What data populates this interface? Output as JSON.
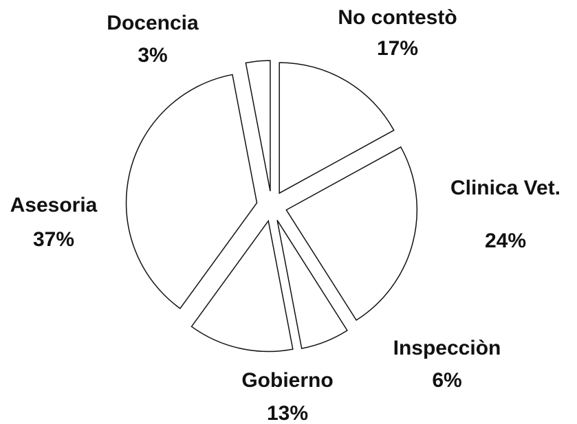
{
  "chart_data": {
    "type": "pie",
    "categories": [
      "No contestò",
      "Clinica Vet.",
      "Inspecciòn",
      "Gobierno",
      "Asesoria",
      "Docencia"
    ],
    "values": [
      17,
      24,
      6,
      13,
      37,
      3
    ],
    "value_labels": [
      "17%",
      "24%",
      "6%",
      "13%",
      "37%",
      "3%"
    ],
    "color": "#ffffff"
  }
}
